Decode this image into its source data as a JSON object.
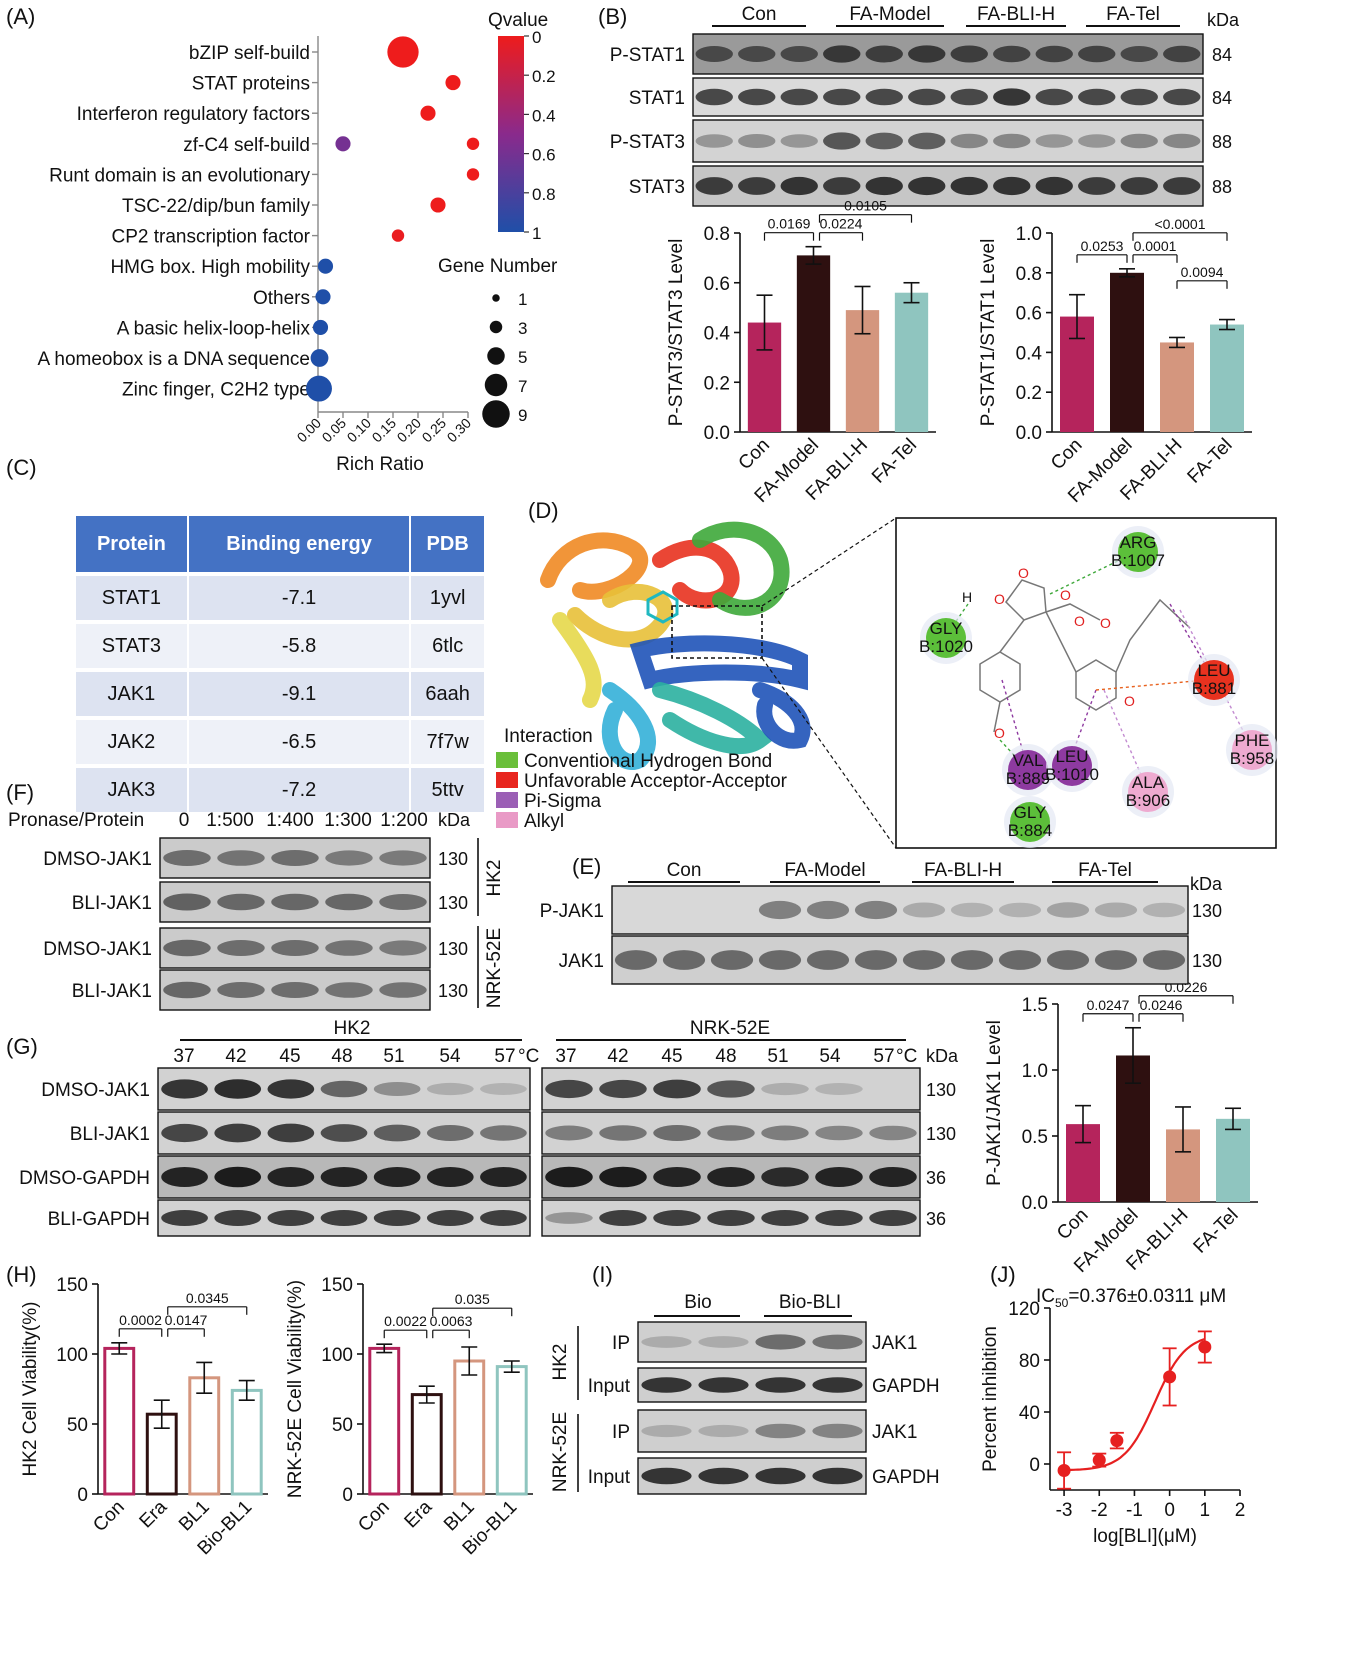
{
  "panel_letters": {
    "A": "(A)",
    "B": "(B)",
    "C": "(C)",
    "D": "(D)",
    "E": "(E)",
    "F": "(F)",
    "G": "(G)",
    "H": "(H)",
    "I": "(I)",
    "J": "(J)"
  },
  "colors": {
    "con": "#b5245c",
    "model": "#2e1010",
    "bli": "#d4967e",
    "tel": "#8fc5bf",
    "red": "#e62020"
  },
  "panel_a": {
    "qvalue_title": "Qvalue",
    "qvalue_ticks": [
      "0",
      "0.2",
      "0.4",
      "0.6",
      "0.8",
      "1"
    ],
    "gene_number_title": "Gene Number",
    "size_legend": [
      "1",
      "3",
      "5",
      "7",
      "9"
    ],
    "xlabel": "Rich Ratio",
    "xticks": [
      "0.00",
      "0.05",
      "0.10",
      "0.15",
      "0.20",
      "0.25",
      "0.30"
    ]
  },
  "panel_b": {
    "groups": [
      "Con",
      "FA-Model",
      "FA-BLI-H",
      "FA-Tel"
    ],
    "kda": "kDa",
    "rows": [
      {
        "label": "P-STAT1",
        "kda": "84"
      },
      {
        "label": "STAT1",
        "kda": "84"
      },
      {
        "label": "P-STAT3",
        "kda": "88"
      },
      {
        "label": "STAT3",
        "kda": "88"
      }
    ]
  },
  "panel_c": {
    "headers": [
      "Protein",
      "Binding energy",
      "PDB"
    ],
    "rows": [
      [
        "STAT1",
        "-7.1",
        "1yvl"
      ],
      [
        "STAT3",
        "-5.8",
        "6tlc"
      ],
      [
        "JAK1",
        "-9.1",
        "6aah"
      ],
      [
        "JAK2",
        "-6.5",
        "7f7w"
      ],
      [
        "JAK3",
        "-7.2",
        "5ttv"
      ]
    ]
  },
  "panel_d": {
    "legend_title": "Interaction",
    "legend": [
      {
        "label": "Conventional Hydrogen Bond",
        "color": "#6abf3a"
      },
      {
        "label": "Unfavorable Acceptor-Acceptor",
        "color": "#e8261f"
      },
      {
        "label": "Pi-Sigma",
        "color": "#9b5fb5"
      },
      {
        "label": "Alkyl",
        "color": "#e99ac6"
      }
    ],
    "residues": [
      {
        "name": "ARG",
        "id": "B:1007",
        "color": "#5cbf3a"
      },
      {
        "name": "GLY",
        "id": "B:1020",
        "color": "#5cbf3a"
      },
      {
        "name": "LEU",
        "id": "B:881",
        "color": "#e8321f"
      },
      {
        "name": "PHE",
        "id": "B:958",
        "color": "#eeaad0"
      },
      {
        "name": "VAL",
        "id": "B:889",
        "color": "#8e3aa0"
      },
      {
        "name": "LEU",
        "id": "B:1010",
        "color": "#8e3aa0"
      },
      {
        "name": "ALA",
        "id": "B:906",
        "color": "#eeaad0"
      },
      {
        "name": "GLY",
        "id": "B:884",
        "color": "#5cbf3a"
      }
    ],
    "atoms": {
      "H": "H",
      "O": "O"
    }
  },
  "panel_e": {
    "groups": [
      "Con",
      "FA-Model",
      "FA-BLI-H",
      "FA-Tel"
    ],
    "kda": "kDa",
    "rows": [
      {
        "label": "P-JAK1",
        "kda": "130"
      },
      {
        "label": "JAK1",
        "kda": "130"
      }
    ]
  },
  "panel_f": {
    "header_label": "Pronase/Protein",
    "ratios": [
      "0",
      "1:500",
      "1:400",
      "1:300",
      "1:200"
    ],
    "kda": "kDa",
    "rows": [
      {
        "label": "DMSO-JAK1",
        "kda": "130"
      },
      {
        "label": "BLI-JAK1",
        "kda": "130"
      },
      {
        "label": "DMSO-JAK1",
        "kda": "130"
      },
      {
        "label": "BLI-JAK1",
        "kda": "130"
      }
    ],
    "cells": [
      "HK2",
      "NRK-52E"
    ]
  },
  "panel_g": {
    "cells": [
      "HK2",
      "NRK-52E"
    ],
    "temps": [
      "37",
      "42",
      "45",
      "48",
      "51",
      "54",
      "57"
    ],
    "unit": "°C",
    "kda": "kDa",
    "rows": [
      {
        "label": "DMSO-JAK1",
        "kda": "130"
      },
      {
        "label": "BLI-JAK1",
        "kda": "130"
      },
      {
        "label": "DMSO-GAPDH",
        "kda": "36"
      },
      {
        "label": "BLI-GAPDH",
        "kda": "36"
      }
    ]
  },
  "panel_i": {
    "groups": [
      "Bio",
      "Bio-BLI"
    ],
    "cells": [
      "HK2",
      "NRK-52E"
    ],
    "row_labels": [
      "IP",
      "Input",
      "IP",
      "Input"
    ],
    "band_labels": [
      "JAK1",
      "GAPDH",
      "JAK1",
      "GAPDH"
    ]
  },
  "chart_data": [
    {
      "id": "A",
      "type": "scatter",
      "categories": [
        "bZIP self-build",
        "STAT proteins",
        "Interferon regulatory factors",
        "zf-C4 self-build",
        "Runt domain is an evolutionary",
        "TSC-22/dip/bun family",
        "CP2 transcription factor",
        "HMG box. High mobility",
        "Others",
        "A basic helix-loop-helix",
        "A homeobox is a DNA sequence",
        "Zinc finger, C2H2 type"
      ],
      "series": [
        {
          "points": [
            {
              "category": "bZIP self-build",
              "x": 0.17,
              "q": 0.0,
              "size": 9
            },
            {
              "category": "STAT proteins",
              "x": 0.27,
              "q": 0.0,
              "size": 3
            },
            {
              "category": "Interferon regulatory factors",
              "x": 0.22,
              "q": 0.0,
              "size": 3
            },
            {
              "category": "zf-C4 self-build",
              "x": 0.31,
              "q": 0.0,
              "size": 2
            },
            {
              "category": "zf-C4 self-build",
              "x": 0.05,
              "q": 0.6,
              "size": 3
            },
            {
              "category": "Runt domain is an evolutionary",
              "x": 0.31,
              "q": 0.0,
              "size": 2
            },
            {
              "category": "TSC-22/dip/bun family",
              "x": 0.24,
              "q": 0.0,
              "size": 3
            },
            {
              "category": "CP2 transcription factor",
              "x": 0.16,
              "q": 0.02,
              "size": 2
            },
            {
              "category": "HMG box. High mobility",
              "x": 0.015,
              "q": 1.0,
              "size": 3
            },
            {
              "category": "Others",
              "x": 0.01,
              "q": 1.0,
              "size": 3
            },
            {
              "category": "A basic helix-loop-helix",
              "x": 0.005,
              "q": 1.0,
              "size": 3
            },
            {
              "category": "A homeobox is a DNA sequence",
              "x": 0.003,
              "q": 1.0,
              "size": 4
            },
            {
              "category": "Zinc finger, C2H2 type",
              "x": 0.002,
              "q": 1.0,
              "size": 7
            }
          ]
        }
      ],
      "xlim": [
        0,
        0.3
      ]
    },
    {
      "id": "B1",
      "type": "bar",
      "categories": [
        "Con",
        "FA-Model",
        "FA-BLI-H",
        "FA-Tel"
      ],
      "values": [
        0.44,
        0.71,
        0.49,
        0.56
      ],
      "errors": [
        0.11,
        0.035,
        0.095,
        0.04
      ],
      "ylabel": "P-STAT3/STAT3 Level",
      "ylim": [
        0,
        0.8
      ],
      "yticks": [
        "0.0",
        "0.2",
        "0.4",
        "0.6",
        "0.8"
      ],
      "comparisons": [
        {
          "a": 0,
          "b": 1,
          "p": "0.0169"
        },
        {
          "a": 1,
          "b": 2,
          "p": "0.0224"
        },
        {
          "a": 1,
          "b": 3,
          "p": "0.0105"
        }
      ]
    },
    {
      "id": "B2",
      "type": "bar",
      "categories": [
        "Con",
        "FA-Model",
        "FA-BLI-H",
        "FA-Tel"
      ],
      "values": [
        0.58,
        0.8,
        0.45,
        0.54
      ],
      "errors": [
        0.11,
        0.02,
        0.025,
        0.025
      ],
      "ylabel": "P-STAT1/STAT1 Level",
      "ylim": [
        0,
        1.0
      ],
      "yticks": [
        "0.0",
        "0.2",
        "0.4",
        "0.6",
        "0.8",
        "1.0"
      ],
      "comparisons": [
        {
          "a": 0,
          "b": 1,
          "p": "0.0253"
        },
        {
          "a": 1,
          "b": 2,
          "p": "0.0001"
        },
        {
          "a": 1,
          "b": 3,
          "p": "<0.0001"
        },
        {
          "a": 2,
          "b": 3,
          "p": "0.0094"
        }
      ]
    },
    {
      "id": "E",
      "type": "bar",
      "categories": [
        "Con",
        "FA-Model",
        "FA-BLI-H",
        "FA-Tel"
      ],
      "values": [
        0.59,
        1.11,
        0.55,
        0.63
      ],
      "errors": [
        0.14,
        0.21,
        0.17,
        0.08
      ],
      "ylabel": "P-JAK1/JAK1 Level",
      "ylim": [
        0,
        1.5
      ],
      "yticks": [
        "0.0",
        "0.5",
        "1.0",
        "1.5"
      ],
      "comparisons": [
        {
          "a": 0,
          "b": 1,
          "p": "0.0247"
        },
        {
          "a": 1,
          "b": 2,
          "p": "0.0246"
        },
        {
          "a": 1,
          "b": 3,
          "p": "0.0226"
        }
      ]
    },
    {
      "id": "H1",
      "type": "bar",
      "categories": [
        "Con",
        "Era",
        "BL1",
        "Bio-BL1"
      ],
      "values": [
        104,
        57,
        83,
        74
      ],
      "errors": [
        4,
        10,
        11,
        7
      ],
      "ylabel": "HK2 Cell Viability(%)",
      "ylim": [
        0,
        150
      ],
      "yticks": [
        "0",
        "50",
        "100",
        "150"
      ],
      "comparisons": [
        {
          "a": 0,
          "b": 1,
          "p": "0.0002"
        },
        {
          "a": 1,
          "b": 2,
          "p": "0.0147"
        },
        {
          "a": 1,
          "b": 3,
          "p": "0.0345"
        }
      ]
    },
    {
      "id": "H2",
      "type": "bar",
      "categories": [
        "Con",
        "Era",
        "BL1",
        "Bio-BL1"
      ],
      "values": [
        104,
        71,
        95,
        91
      ],
      "errors": [
        3,
        6,
        10,
        4
      ],
      "ylabel": "NRK-52E Cell Viability(%)",
      "ylim": [
        0,
        150
      ],
      "yticks": [
        "0",
        "50",
        "100",
        "150"
      ],
      "comparisons": [
        {
          "a": 0,
          "b": 1,
          "p": "0.0022"
        },
        {
          "a": 1,
          "b": 2,
          "p": "0.0063"
        },
        {
          "a": 1,
          "b": 3,
          "p": "0.035"
        }
      ]
    },
    {
      "id": "J",
      "type": "line",
      "title": "IC50=0.376±0.0311 μM",
      "title_base": "IC",
      "title_sub": "50",
      "title_rest": "=0.376±0.0311 μM",
      "x": [
        -3,
        -2,
        -1.5,
        0,
        1
      ],
      "y": [
        -5,
        3,
        18,
        67,
        90
      ],
      "errors": [
        14,
        5,
        6,
        22,
        12
      ],
      "xlabel": "log[BLI](μM)",
      "ylabel": "Percent inhibition",
      "xlim": [
        -3,
        2
      ],
      "ylim": [
        0,
        120
      ],
      "xticks": [
        "-3",
        "-2",
        "-1",
        "0",
        "1",
        "2"
      ],
      "yticks": [
        "0",
        "40",
        "80",
        "120"
      ]
    }
  ]
}
